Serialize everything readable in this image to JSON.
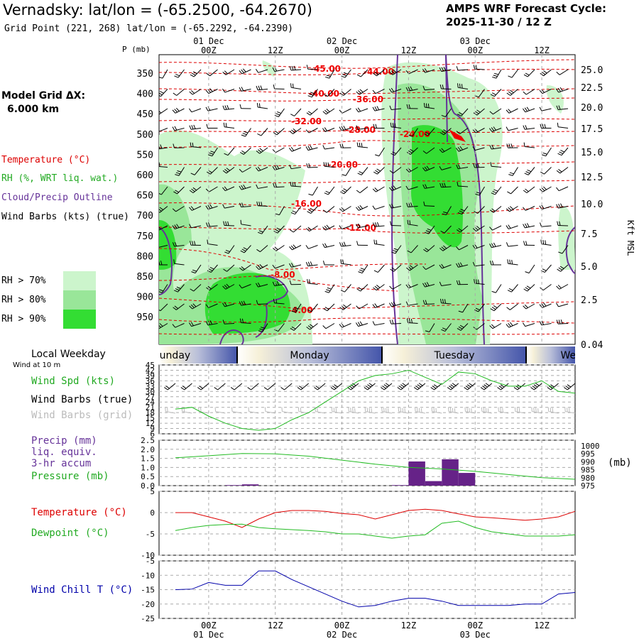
{
  "header": {
    "title": "Vernadsky:  lat/lon = (-65.2500, -64.2670)",
    "subtitle": "Grid Point (221, 268) lat/lon = (-65.2292, -64.2390)",
    "cycle_line1": "AMPS WRF Forecast Cycle:",
    "cycle_line2": "2025-11-30 / 12  Z"
  },
  "left_panel": {
    "grid_line1": "Model Grid ΔX:",
    "grid_line2": "6.000 km",
    "legend_temperature": "Temperature (°C)",
    "legend_rh": "RH (%, WRT liq. wat.)",
    "legend_cloud": "Cloud/Precip Outline",
    "legend_wind": "Wind Barbs (kts) (true)",
    "rh_levels": [
      "RH > 70%",
      "RH > 80%",
      "RH > 90%"
    ],
    "local_weekday": "Local Weekday",
    "wind_at": "Wind at 10 m",
    "wind_spd_label": "Wind Spd (kts)",
    "wind_barbs_true": "Wind Barbs (true)",
    "wind_barbs_grid": "Wind Barbs (grid)",
    "precip_label_1": "Precip (mm)",
    "precip_label_2": "liq. equiv.",
    "precip_label_3": "3-hr accum",
    "pressure_label": "Pressure (mb)",
    "temp_label": "Temperature (°C)",
    "dew_label": "Dewpoint (°C)",
    "windchill_label": "Wind Chill T (°C)"
  },
  "colors": {
    "temperature": "#dd0000",
    "rh70": "#ccf5cc",
    "rh80": "#99e699",
    "rh90": "#33dd33",
    "cloud": "#663399",
    "dewpoint": "#22bb22",
    "windchill": "#0000aa",
    "precip": "#662288",
    "weekday_band": "#5566bb"
  },
  "chart_data": [
    {
      "type": "heatmap",
      "title": "Vertical cross-section (time-height)",
      "x_top_ticks": [
        "00Z",
        "12Z",
        "00Z",
        "12Z",
        "00Z",
        "12Z"
      ],
      "x_top_dates": [
        "01 Dec",
        "02 Dec",
        "03 Dec"
      ],
      "x_hours_range": [
        0,
        72
      ],
      "y_left_label": "P (mb)",
      "y_left_ticks": [
        "350",
        "400",
        "450",
        "500",
        "550",
        "600",
        "650",
        "700",
        "750",
        "800",
        "850",
        "900",
        "950"
      ],
      "y_right_label": "Kft MSL",
      "y_right_ticks": [
        "25.0",
        "22.5",
        "20.0",
        "17.5",
        "15.0",
        "12.5",
        "10.0",
        "7.5",
        "5.0",
        "2.5",
        "0.04"
      ],
      "temperature_contour_labels": [
        "-45.00",
        "-44.00",
        "-40.00",
        "-36.00",
        "-32.00",
        "-28.00",
        "-24.00",
        "-20.00",
        "-16.00",
        "-12.00",
        "-8.00",
        "-4.00"
      ]
    },
    {
      "type": "line",
      "title": "Wind Spd (kts)",
      "ylim": [
        6,
        45
      ],
      "y_ticks": [
        "45",
        "42",
        "39",
        "36",
        "33",
        "30",
        "27",
        "24",
        "21",
        "18",
        "15",
        "12",
        "9",
        "6"
      ],
      "x_hours": [
        0,
        3,
        6,
        9,
        12,
        15,
        18,
        21,
        24,
        27,
        30,
        33,
        36,
        39,
        42,
        45,
        48,
        51,
        54,
        57,
        60,
        63,
        66,
        69,
        72
      ],
      "values": [
        20,
        21,
        16,
        12,
        9,
        8,
        9,
        14,
        18,
        24,
        30,
        36,
        39,
        40,
        42,
        38,
        34,
        41,
        40,
        36,
        33,
        33,
        36,
        30,
        29
      ],
      "weekdays": [
        "Sunday",
        "Monday",
        "Tuesday",
        "Wednesday"
      ]
    },
    {
      "type": "bar",
      "title": "Precip (mm) / Pressure (mb)",
      "precip_ylim": [
        0,
        2.5
      ],
      "precip_ticks": [
        "2.5",
        "2.0",
        "1.5",
        "1.0",
        "0.5",
        "0.0"
      ],
      "pressure_ticks": [
        "1000",
        "995",
        "990",
        "985",
        "980",
        "975"
      ],
      "pressure_ylim": [
        975,
        1000
      ],
      "pressure_label": "(mb)",
      "precip_hours": [
        9,
        12,
        39,
        42,
        45,
        48,
        51,
        54
      ],
      "precip_values": [
        0.03,
        0.07,
        0.03,
        1.33,
        0.25,
        1.45,
        0.7,
        0.0
      ],
      "pressure_hours": [
        0,
        6,
        12,
        18,
        24,
        30,
        36,
        42,
        48,
        54,
        60,
        66,
        72
      ],
      "pressure_values": [
        992.5,
        993.8,
        995.2,
        995.0,
        993.5,
        991.0,
        988.5,
        986.5,
        985.5,
        984.0,
        982.0,
        980.0,
        979.0
      ]
    },
    {
      "type": "line",
      "title": "Temperature / Dewpoint (°C)",
      "ylim": [
        -10,
        5
      ],
      "y_ticks": [
        "5",
        "0",
        "-5",
        "-10"
      ],
      "x_hours": [
        0,
        3,
        6,
        9,
        12,
        15,
        18,
        21,
        24,
        27,
        30,
        33,
        36,
        39,
        42,
        45,
        48,
        51,
        54,
        57,
        60,
        63,
        66,
        69,
        72
      ],
      "temperature": [
        0,
        0,
        -1,
        -2,
        -3.5,
        -1.5,
        0,
        0.5,
        0.5,
        0.3,
        -0.2,
        -0.5,
        -1.5,
        -0.5,
        0.5,
        0.8,
        0.5,
        -0.3,
        -1,
        -1.2,
        -1.5,
        -1.8,
        -1.5,
        -1.0,
        0.3
      ],
      "dewpoint": [
        -4.2,
        -3.5,
        -3,
        -2.8,
        -2.7,
        -3.5,
        -3.8,
        -4,
        -4.2,
        -4.5,
        -5,
        -5,
        -5.5,
        -6,
        -5.5,
        -5.2,
        -2.5,
        -2,
        -3.5,
        -4.5,
        -5,
        -5.5,
        -5.5,
        -5.5,
        -5.2
      ]
    },
    {
      "type": "line",
      "title": "Wind Chill T (°C)",
      "ylim": [
        -25,
        -5
      ],
      "y_ticks": [
        "-5",
        "-10",
        "-15",
        "-20",
        "-25"
      ],
      "x_hours": [
        0,
        3,
        6,
        9,
        12,
        15,
        18,
        21,
        24,
        27,
        30,
        33,
        36,
        39,
        42,
        45,
        48,
        51,
        54,
        57,
        60,
        63,
        66,
        69,
        72
      ],
      "values": [
        -15,
        -14.8,
        -12.5,
        -13.5,
        -13.5,
        -8.5,
        -8.5,
        -11.5,
        -14,
        -16.5,
        -19,
        -21,
        -20.5,
        -19,
        -18,
        -18,
        -19,
        -20.5,
        -20.5,
        -20.5,
        -20.5,
        -20,
        -20,
        -16.5,
        -16
      ]
    }
  ]
}
